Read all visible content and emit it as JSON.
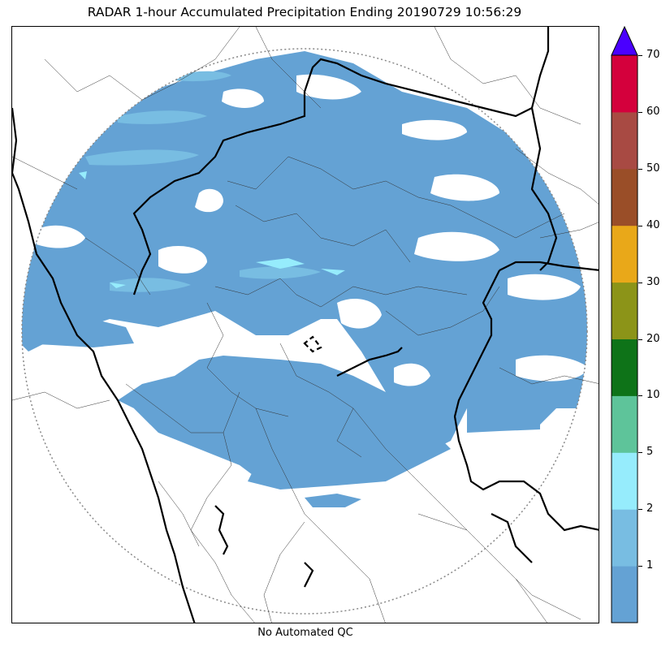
{
  "title": "RADAR 1-hour Accumulated Precipitation Ending 20190729 10:56:29",
  "footer": "No Automated QC",
  "colorbar": {
    "colors": [
      "#64a2d4",
      "#78bde2",
      "#96ecfc",
      "#5ec49a",
      "#0e7318",
      "#8c9418",
      "#e9a819",
      "#9a4e28",
      "#a84a43",
      "#d4003c"
    ],
    "extend_color": "#4a00ff",
    "labels": [
      "1",
      "2",
      "5",
      "10",
      "20",
      "30",
      "40",
      "50",
      "60",
      "70"
    ]
  },
  "map": {
    "precip_color": "#64a2d4",
    "light_color": "#78bde2",
    "heavy_color": "#96ecfc"
  }
}
